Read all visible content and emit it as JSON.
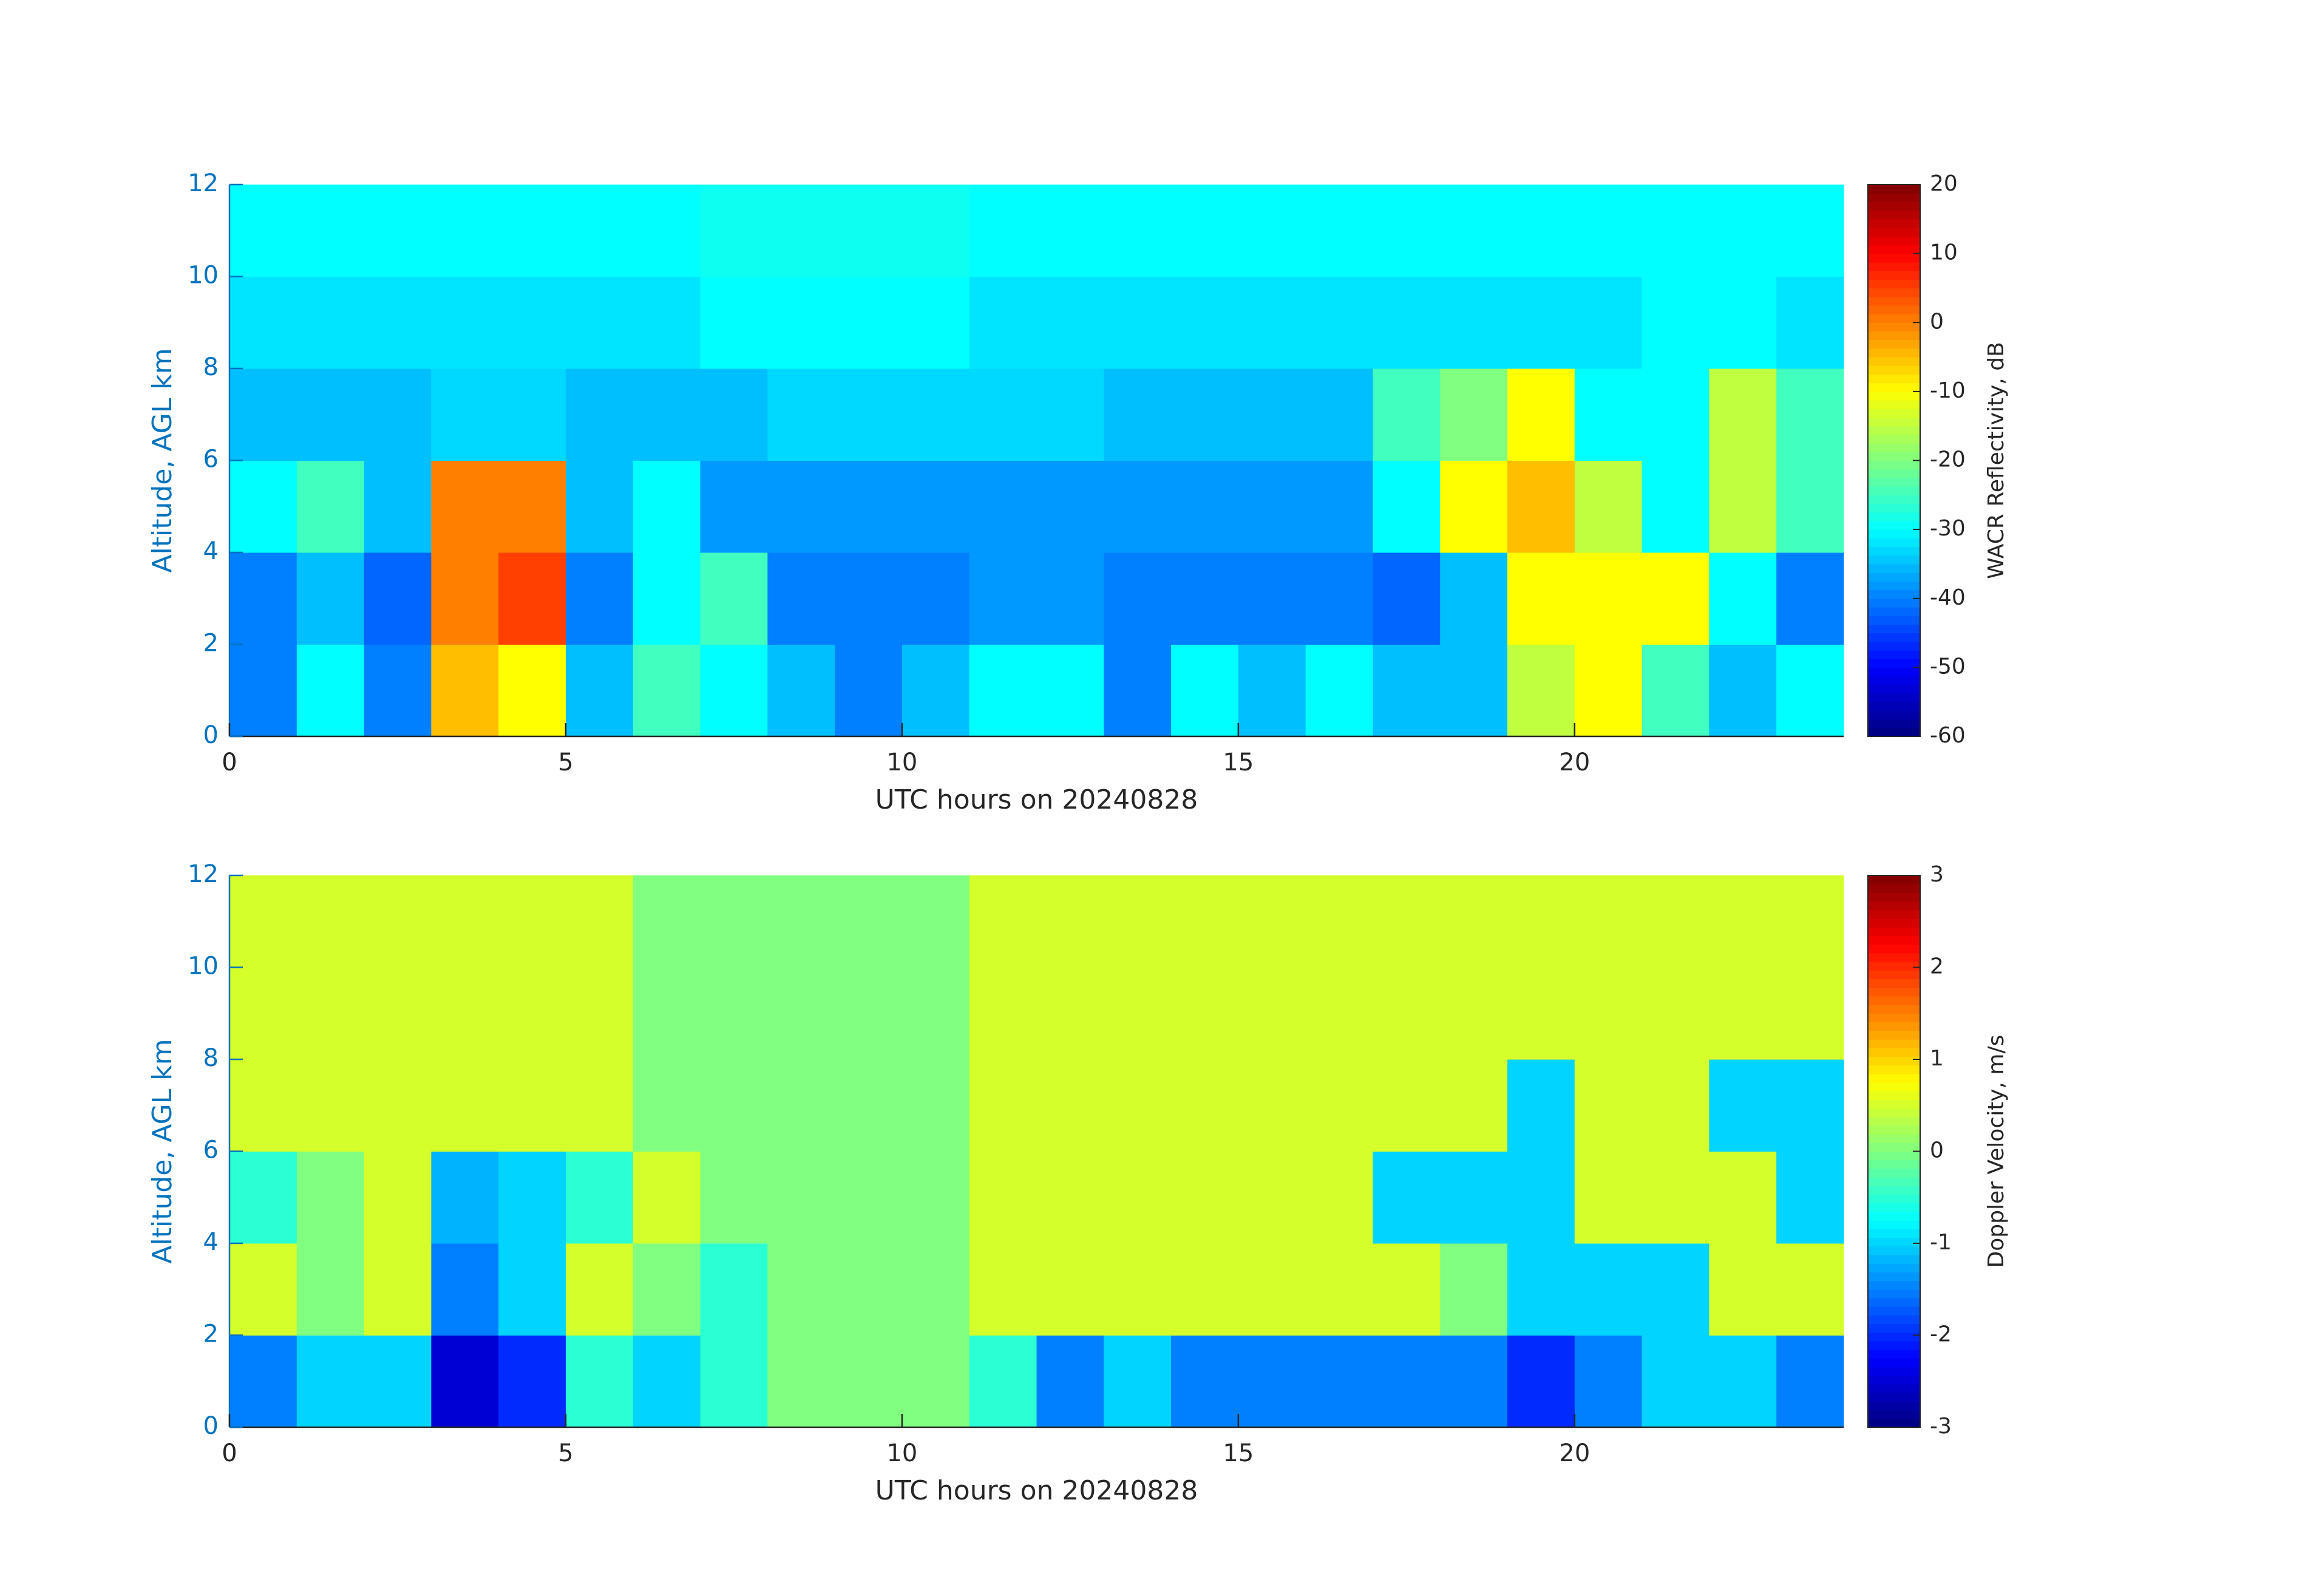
{
  "chart_data": [
    {
      "type": "heatmap",
      "xlabel": "UTC hours on 20240828",
      "ylabel": "Altitude, AGL km",
      "x": [
        0.5,
        1.5,
        2.5,
        3.5,
        4.5,
        5.5,
        6.5,
        7.5,
        8.5,
        9.5,
        10.5,
        11.5,
        12.5,
        13.5,
        14.5,
        15.5,
        16.5,
        17.5,
        18.5,
        19.5,
        20.5,
        21.5,
        22.5,
        23.5
      ],
      "y": [
        1,
        3,
        5,
        7,
        9,
        11
      ],
      "values": [
        [
          -40,
          -30,
          -40,
          -5,
          -10,
          -35,
          -25,
          -30,
          -35,
          -40,
          -35,
          -30,
          -30,
          -40,
          -30,
          -35,
          -30,
          -35,
          -35,
          -15,
          -10,
          -25,
          -35,
          -30
        ],
        [
          -40,
          -35,
          -42,
          0,
          5,
          -40,
          -30,
          -25,
          -40,
          -40,
          -40,
          -38,
          -38,
          -40,
          -40,
          -40,
          -40,
          -42,
          -35,
          -10,
          -10,
          -10,
          -30,
          -40
        ],
        [
          -30,
          -25,
          -35,
          0,
          0,
          -35,
          -30,
          -38,
          -38,
          -38,
          -38,
          -38,
          -38,
          -38,
          -38,
          -38,
          -38,
          -30,
          -10,
          -5,
          -15,
          -30,
          -15,
          -25
        ],
        [
          -35,
          -35,
          -35,
          -33,
          -33,
          -35,
          -35,
          -35,
          -33,
          -33,
          -33,
          -33,
          -33,
          -35,
          -35,
          -35,
          -35,
          -25,
          -20,
          -10,
          -30,
          -30,
          -15,
          -25
        ],
        [
          -32,
          -32,
          -32,
          -32,
          -32,
          -32,
          -32,
          -30,
          -30,
          -30,
          -30,
          -32,
          -32,
          -32,
          -32,
          -32,
          -32,
          -32,
          -32,
          -32,
          -32,
          -30,
          -30,
          -32
        ],
        [
          -30,
          -30,
          -30,
          -30,
          -30,
          -30,
          -30,
          -29,
          -29,
          -29,
          -29,
          -30,
          -30,
          -30,
          -30,
          -30,
          -30,
          -30,
          -30,
          -30,
          -30,
          -30,
          -30,
          -30
        ]
      ],
      "xlim": [
        0,
        24
      ],
      "xticks": [
        0,
        5,
        10,
        15,
        20
      ],
      "ylim": [
        0,
        12
      ],
      "yticks": [
        0,
        2,
        4,
        6,
        8,
        10,
        12
      ],
      "colorbar": {
        "label": "WACR Reflectivity, dB",
        "lim": [
          -60,
          20
        ],
        "ticks": [
          -60,
          -50,
          -40,
          -30,
          -20,
          -10,
          0,
          10,
          20
        ],
        "colormap": "jet"
      }
    },
    {
      "type": "heatmap",
      "xlabel": "UTC hours on 20240828",
      "ylabel": "Altitude, AGL km",
      "x": [
        0.5,
        1.5,
        2.5,
        3.5,
        4.5,
        5.5,
        6.5,
        7.5,
        8.5,
        9.5,
        10.5,
        11.5,
        12.5,
        13.5,
        14.5,
        15.5,
        16.5,
        17.5,
        18.5,
        19.5,
        20.5,
        21.5,
        22.5,
        23.5
      ],
      "y": [
        1,
        3,
        5,
        7,
        9,
        11
      ],
      "values": [
        [
          -1.5,
          -1,
          -1,
          -2.5,
          -2,
          -0.5,
          -1,
          -0.5,
          0,
          0,
          0,
          -0.5,
          -1.5,
          -1,
          -1.5,
          -1.5,
          -1.5,
          -1.5,
          -1.5,
          -2,
          -1.5,
          -1,
          -1,
          -1.5
        ],
        [
          0.5,
          0,
          0.5,
          -1.5,
          -1,
          0.5,
          0,
          -0.5,
          0,
          0,
          0,
          0.5,
          0.5,
          0.5,
          0.5,
          0.5,
          0.5,
          0.5,
          0,
          -1,
          -1,
          -1,
          0.5,
          0.5
        ],
        [
          -0.5,
          0,
          0.5,
          -1.2,
          -1,
          -0.5,
          0.5,
          0,
          0,
          0,
          0,
          0.5,
          0.5,
          0.5,
          0.5,
          0.5,
          0.5,
          -1,
          -1,
          -1,
          0.5,
          0.5,
          0.5,
          -1
        ],
        [
          0.5,
          0.5,
          0.5,
          0.5,
          0.5,
          0.5,
          0,
          0,
          0,
          0,
          0,
          0.5,
          0.5,
          0.5,
          0.5,
          0.5,
          0.5,
          0.5,
          0.5,
          -1,
          0.5,
          0.5,
          -1,
          -1
        ],
        [
          0.5,
          0.5,
          0.5,
          0.5,
          0.5,
          0.5,
          0,
          0,
          0,
          0,
          0,
          0.5,
          0.5,
          0.5,
          0.5,
          0.5,
          0.5,
          0.5,
          0.5,
          0.5,
          0.5,
          0.5,
          0.5,
          0.5
        ],
        [
          0.5,
          0.5,
          0.5,
          0.5,
          0.5,
          0.5,
          0,
          0,
          0,
          0,
          0,
          0.5,
          0.5,
          0.5,
          0.5,
          0.5,
          0.5,
          0.5,
          0.5,
          0.5,
          0.5,
          0.5,
          0.5,
          0.5
        ]
      ],
      "xlim": [
        0,
        24
      ],
      "xticks": [
        0,
        5,
        10,
        15,
        20
      ],
      "ylim": [
        0,
        12
      ],
      "yticks": [
        0,
        2,
        4,
        6,
        8,
        10,
        12
      ],
      "colorbar": {
        "label": "Doppler Velocity, m/s",
        "lim": [
          -3,
          3
        ],
        "ticks": [
          -3,
          -2,
          -1,
          0,
          1,
          2,
          3
        ],
        "colormap": "jet"
      }
    }
  ]
}
